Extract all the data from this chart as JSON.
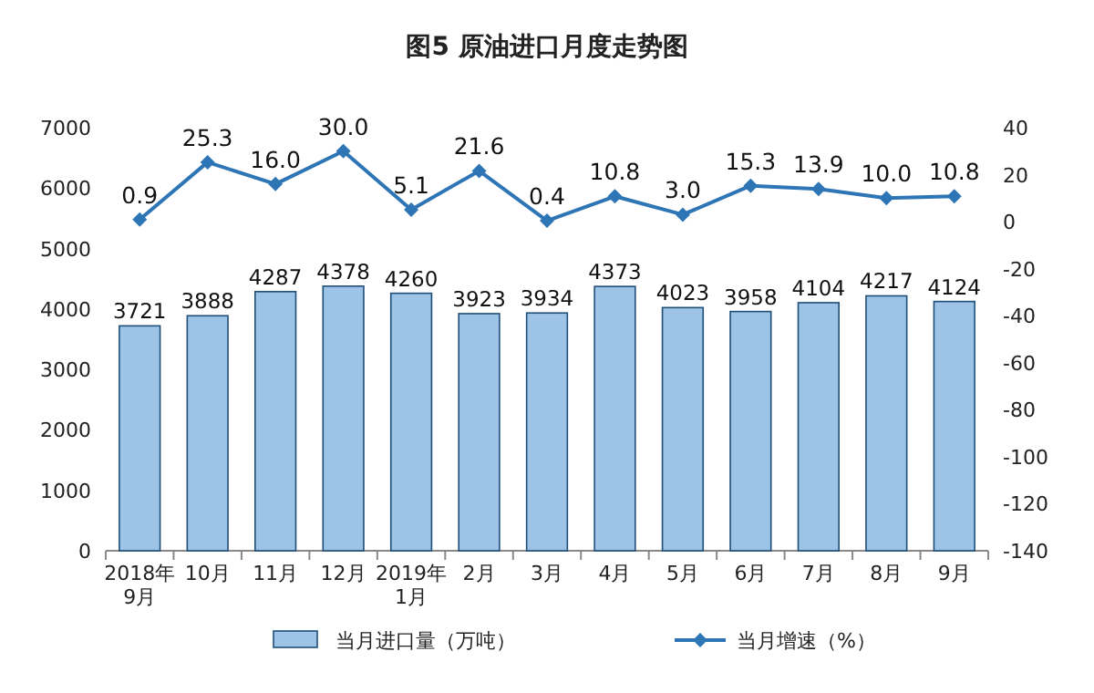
{
  "chart_data": {
    "type": "bar",
    "title": "图5  原油进口月度走势图",
    "categories": [
      "2018年\n9月",
      "10月",
      "11月",
      "12月",
      "2019年\n1月",
      "2月",
      "3月",
      "4月",
      "5月",
      "6月",
      "7月",
      "8月",
      "9月"
    ],
    "series": [
      {
        "name": "当月进口量（万吨）",
        "color": "#9dc3e6",
        "values": [
          3721,
          3888,
          4287,
          4378,
          4260,
          3923,
          3934,
          4373,
          4023,
          3958,
          4104,
          4217,
          4124
        ]
      },
      {
        "name": "当月增速（%）",
        "type": "line",
        "axis": "y2",
        "marker": "diamond",
        "color": "#2e75b6",
        "values": [
          0.9,
          25.3,
          16.0,
          30.0,
          5.1,
          21.6,
          0.4,
          10.8,
          3.0,
          15.3,
          13.9,
          10.0,
          10.8
        ],
        "value_labels": [
          "0.9",
          "25.3",
          "16.0",
          "30.0",
          "5.1",
          "21.6",
          "0.4",
          "10.8",
          "3.0",
          "15.3",
          "13.9",
          "10.0",
          "10.8"
        ]
      }
    ],
    "ylim": [
      0,
      7000
    ],
    "yticks": [
      0,
      1000,
      2000,
      3000,
      4000,
      5000,
      6000,
      7000
    ],
    "y2lim": [
      -140,
      40
    ],
    "y2ticks": [
      -140,
      -120,
      -100,
      -80,
      -60,
      -40,
      -20,
      0,
      20,
      40
    ],
    "data_labels": true,
    "legend": "bottom"
  }
}
